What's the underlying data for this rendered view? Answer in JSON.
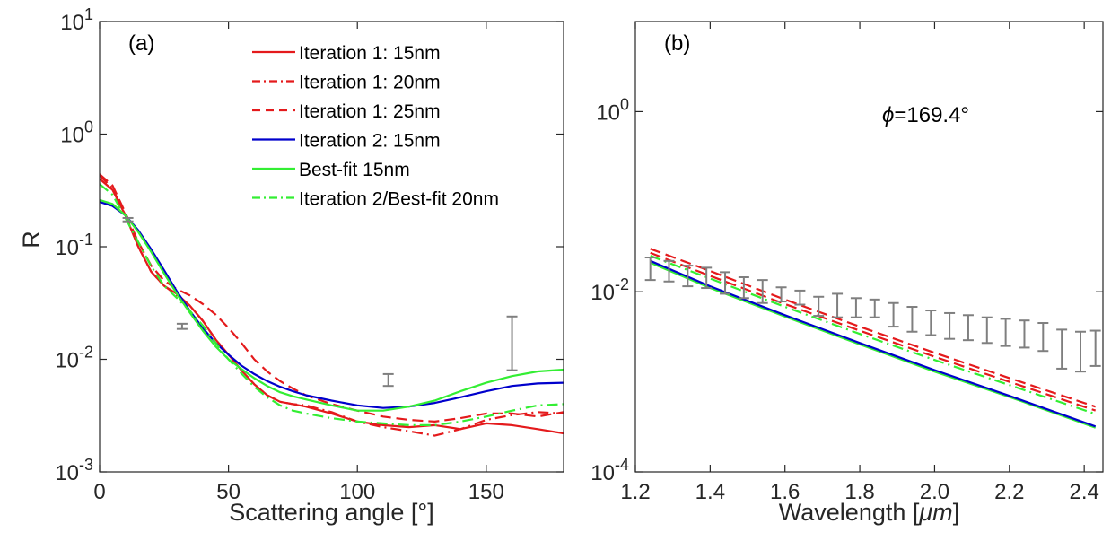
{
  "chart_data": [
    {
      "type": "line",
      "panel_label": "(a)",
      "xlabel": "Scattering angle [°]",
      "ylabel": "R",
      "xlim": [
        0,
        180
      ],
      "ylim": [
        0.001,
        10
      ],
      "yscale": "log",
      "xticks": [
        "0",
        "50",
        "100",
        "150"
      ],
      "xtick_values": [
        0,
        50,
        100,
        150
      ],
      "yticks": [
        {
          "base": "10",
          "exp": "-3",
          "value": 0.001
        },
        {
          "base": "10",
          "exp": "-2",
          "value": 0.01
        },
        {
          "base": "10",
          "exp": "-1",
          "value": 0.1
        },
        {
          "base": "10",
          "exp": "0",
          "value": 1
        },
        {
          "base": "10",
          "exp": "1",
          "value": 10
        }
      ],
      "legend_position": "top-right",
      "series": [
        {
          "name": "Iteration 1: 15nm",
          "color": "#e41a1c",
          "dash": "solid",
          "x": [
            0,
            5,
            10,
            15,
            20,
            25,
            30,
            35,
            40,
            45,
            50,
            55,
            60,
            65,
            70,
            75,
            80,
            90,
            100,
            110,
            120,
            130,
            140,
            150,
            160,
            170,
            180
          ],
          "y": [
            0.4,
            0.32,
            0.19,
            0.1,
            0.06,
            0.045,
            0.038,
            0.03,
            0.022,
            0.015,
            0.011,
            0.008,
            0.006,
            0.0048,
            0.0042,
            0.004,
            0.0038,
            0.0033,
            0.0028,
            0.0026,
            0.0025,
            0.0026,
            0.0024,
            0.0027,
            0.0026,
            0.0024,
            0.0022
          ]
        },
        {
          "name": "Iteration 1: 20nm",
          "color": "#e41a1c",
          "dash": "dashdot",
          "x": [
            0,
            5,
            10,
            15,
            20,
            25,
            30,
            35,
            40,
            45,
            50,
            55,
            60,
            65,
            70,
            75,
            80,
            90,
            100,
            110,
            120,
            130,
            140,
            150,
            160,
            170,
            180
          ],
          "y": [
            0.43,
            0.33,
            0.19,
            0.1,
            0.06,
            0.045,
            0.037,
            0.03,
            0.022,
            0.015,
            0.011,
            0.008,
            0.006,
            0.0048,
            0.0042,
            0.004,
            0.0039,
            0.0034,
            0.0028,
            0.0025,
            0.0023,
            0.0021,
            0.0024,
            0.0029,
            0.0032,
            0.0034,
            0.0033
          ]
        },
        {
          "name": "Iteration 1: 25nm",
          "color": "#e41a1c",
          "dash": "dash",
          "x": [
            0,
            5,
            10,
            15,
            20,
            25,
            30,
            35,
            40,
            45,
            50,
            55,
            60,
            65,
            70,
            75,
            80,
            90,
            100,
            110,
            120,
            130,
            140,
            150,
            160,
            170,
            180
          ],
          "y": [
            0.44,
            0.35,
            0.2,
            0.11,
            0.068,
            0.05,
            0.042,
            0.037,
            0.031,
            0.025,
            0.019,
            0.014,
            0.01,
            0.0078,
            0.0064,
            0.0055,
            0.0048,
            0.004,
            0.0035,
            0.0031,
            0.0029,
            0.0028,
            0.003,
            0.0033,
            0.0033,
            0.0031,
            0.0034
          ]
        },
        {
          "name": "Iteration 2: 15nm",
          "color": "#0000cc",
          "dash": "solid",
          "x": [
            0,
            5,
            10,
            15,
            20,
            25,
            30,
            35,
            40,
            45,
            50,
            55,
            60,
            65,
            70,
            75,
            80,
            90,
            100,
            110,
            120,
            130,
            140,
            150,
            160,
            170,
            180
          ],
          "y": [
            0.25,
            0.23,
            0.19,
            0.14,
            0.095,
            0.062,
            0.04,
            0.027,
            0.019,
            0.014,
            0.011,
            0.0088,
            0.0074,
            0.0064,
            0.0057,
            0.0052,
            0.0048,
            0.0043,
            0.0039,
            0.0037,
            0.0038,
            0.0041,
            0.0046,
            0.0052,
            0.0058,
            0.0061,
            0.0062
          ]
        },
        {
          "name": "Best-fit 15nm",
          "color": "#33ee33",
          "dash": "solid",
          "x": [
            0,
            5,
            10,
            15,
            20,
            25,
            30,
            35,
            40,
            45,
            50,
            55,
            60,
            65,
            70,
            75,
            80,
            90,
            100,
            110,
            120,
            130,
            140,
            150,
            160,
            170,
            180
          ],
          "y": [
            0.26,
            0.24,
            0.19,
            0.135,
            0.09,
            0.058,
            0.038,
            0.026,
            0.018,
            0.013,
            0.01,
            0.0082,
            0.0068,
            0.0058,
            0.0051,
            0.0047,
            0.0044,
            0.0039,
            0.0035,
            0.0035,
            0.0038,
            0.0043,
            0.0052,
            0.0062,
            0.0071,
            0.0078,
            0.0081
          ]
        },
        {
          "name": "Iteration 2/Best-fit 20nm",
          "color": "#33ee33",
          "dash": "dashdot",
          "x": [
            0,
            5,
            10,
            15,
            20,
            25,
            30,
            35,
            40,
            45,
            50,
            55,
            60,
            65,
            70,
            75,
            80,
            90,
            100,
            110,
            120,
            130,
            140,
            150,
            160,
            170,
            180
          ],
          "y": [
            0.36,
            0.29,
            0.18,
            0.11,
            0.067,
            0.045,
            0.035,
            0.027,
            0.02,
            0.014,
            0.01,
            0.0075,
            0.0057,
            0.0046,
            0.0039,
            0.0035,
            0.0033,
            0.003,
            0.0028,
            0.0027,
            0.0026,
            0.0026,
            0.0028,
            0.0031,
            0.0035,
            0.0039,
            0.004
          ]
        }
      ],
      "errorbars": [
        {
          "x": 11,
          "low": 0.168,
          "high": 0.18
        },
        {
          "x": 32,
          "low": 0.0186,
          "high": 0.0207
        },
        {
          "x": 112,
          "low": 0.0058,
          "high": 0.0074
        },
        {
          "x": 160,
          "low": 0.008,
          "high": 0.024
        }
      ],
      "errorbar_color": "#7f7f7f"
    },
    {
      "type": "line",
      "panel_label": "(b)",
      "annotation_symbol": "ϕ",
      "annotation_text": "=169.4°",
      "xlabel": "Wavelength [",
      "xlabel_unit": "μm",
      "xlabel_close": "]",
      "xlim": [
        1.2,
        2.45
      ],
      "ylim": [
        0.0001,
        10
      ],
      "yscale": "log",
      "xticks": [
        "1.2",
        "1.4",
        "1.6",
        "1.8",
        "2.0",
        "2.2",
        "2.4"
      ],
      "xtick_values": [
        1.2,
        1.4,
        1.6,
        1.8,
        2.0,
        2.2,
        2.4
      ],
      "yticks": [
        {
          "base": "10",
          "exp": "-4",
          "value": 0.0001
        },
        {
          "base": "10",
          "exp": "-2",
          "value": 0.01
        },
        {
          "base": "10",
          "exp": "0",
          "value": 1
        }
      ],
      "series": [
        {
          "color": "#e41a1c",
          "dash": "dash",
          "x": [
            1.24,
            1.4,
            1.6,
            1.8,
            2.0,
            2.2,
            2.43
          ],
          "y": [
            0.03,
            0.017,
            0.0082,
            0.0041,
            0.0021,
            0.0011,
            0.00053
          ]
        },
        {
          "color": "#e41a1c",
          "dash": "dash",
          "x": [
            1.24,
            1.4,
            1.6,
            1.8,
            2.0,
            2.2,
            2.43
          ],
          "y": [
            0.027,
            0.015,
            0.0073,
            0.0037,
            0.0019,
            0.001,
            0.00048
          ]
        },
        {
          "color": "#33ee33",
          "dash": "dashdot",
          "x": [
            1.24,
            1.4,
            1.6,
            1.8,
            2.0,
            2.2,
            2.43
          ],
          "y": [
            0.025,
            0.014,
            0.0068,
            0.0034,
            0.00175,
            0.00092,
            0.00044
          ]
        },
        {
          "color": "#33ee33",
          "dash": "solid",
          "x": [
            1.24,
            1.4,
            1.6,
            1.8,
            2.0,
            2.2,
            2.43
          ],
          "y": [
            0.021,
            0.011,
            0.0053,
            0.0026,
            0.0013,
            0.00068,
            0.00031
          ]
        },
        {
          "color": "#0000cc",
          "dash": "solid",
          "x": [
            1.24,
            1.4,
            1.6,
            1.8,
            2.0,
            2.2,
            2.43
          ],
          "y": [
            0.022,
            0.0115,
            0.0055,
            0.0027,
            0.00135,
            0.0007,
            0.00032
          ]
        }
      ],
      "errorbars": [
        {
          "x": 1.24,
          "low": 0.0135,
          "high": 0.024
        },
        {
          "x": 1.29,
          "low": 0.013,
          "high": 0.022
        },
        {
          "x": 1.34,
          "low": 0.0115,
          "high": 0.0195
        },
        {
          "x": 1.39,
          "low": 0.011,
          "high": 0.0185
        },
        {
          "x": 1.44,
          "low": 0.0095,
          "high": 0.0165
        },
        {
          "x": 1.49,
          "low": 0.0085,
          "high": 0.0145
        },
        {
          "x": 1.54,
          "low": 0.0075,
          "high": 0.0135
        },
        {
          "x": 1.59,
          "low": 0.0078,
          "high": 0.0112
        },
        {
          "x": 1.64,
          "low": 0.0072,
          "high": 0.0103
        },
        {
          "x": 1.69,
          "low": 0.0054,
          "high": 0.0088
        },
        {
          "x": 1.74,
          "low": 0.0052,
          "high": 0.0095
        },
        {
          "x": 1.79,
          "low": 0.0052,
          "high": 0.0085
        },
        {
          "x": 1.84,
          "low": 0.0052,
          "high": 0.0082
        },
        {
          "x": 1.89,
          "low": 0.0041,
          "high": 0.0075
        },
        {
          "x": 1.94,
          "low": 0.0036,
          "high": 0.0068
        },
        {
          "x": 1.99,
          "low": 0.0033,
          "high": 0.0062
        },
        {
          "x": 2.04,
          "low": 0.003,
          "high": 0.0058
        },
        {
          "x": 2.09,
          "low": 0.0029,
          "high": 0.0055
        },
        {
          "x": 2.14,
          "low": 0.0027,
          "high": 0.0052
        },
        {
          "x": 2.19,
          "low": 0.0025,
          "high": 0.005
        },
        {
          "x": 2.24,
          "low": 0.0024,
          "high": 0.0048
        },
        {
          "x": 2.29,
          "low": 0.0022,
          "high": 0.0045
        },
        {
          "x": 2.34,
          "low": 0.0014,
          "high": 0.0038
        },
        {
          "x": 2.39,
          "low": 0.0013,
          "high": 0.0036
        },
        {
          "x": 2.43,
          "low": 0.0015,
          "high": 0.0037
        }
      ],
      "errorbar_color": "#7f7f7f"
    }
  ]
}
